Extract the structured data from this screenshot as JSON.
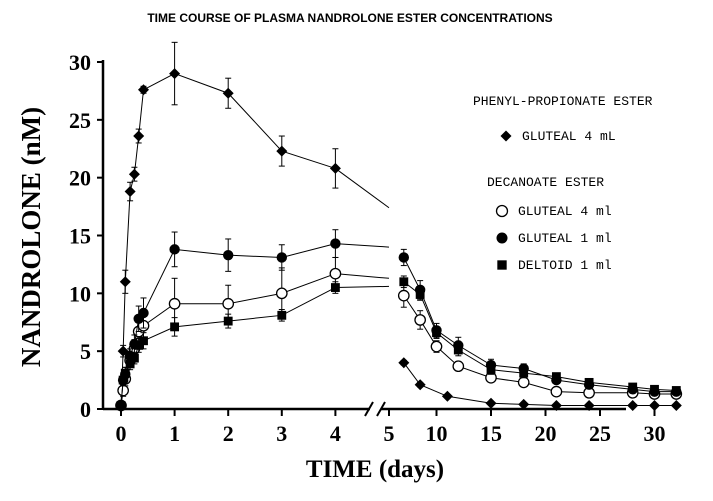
{
  "chart_data": {
    "type": "line",
    "title": "TIME COURSE OF PLASMA NANDROLONE ESTER CONCENTRATIONS",
    "xlabel": "TIME (days)",
    "ylabel": "NANDROLONE (nM)",
    "ylim": [
      0,
      30
    ],
    "y_ticks": [
      "0",
      "5",
      "10",
      "15",
      "20",
      "25",
      "30"
    ],
    "x_axis_segments": [
      {
        "unit": "days",
        "range": [
          0,
          5
        ],
        "ticks": [
          "0",
          "1",
          "2",
          "3",
          "4",
          "5"
        ]
      },
      {
        "unit": "days",
        "range": [
          5,
          32
        ],
        "ticks": [
          "10",
          "15",
          "20",
          "25",
          "30"
        ]
      }
    ],
    "legend_position": "right",
    "legend_groups": [
      {
        "heading": "PHENYL-PROPIONATE ESTER",
        "entries": [
          "GLUTEAL 4 mL"
        ]
      },
      {
        "heading": "DECANOATE ESTER",
        "entries": [
          "GLUTEAL 4 ml",
          "GLUTEAL 1 ml",
          "DELTOID 1 ml"
        ]
      }
    ],
    "series": [
      {
        "name": "GLUTEAL 4 mL",
        "ester": "PHENYL-PROPIONATE ESTER",
        "marker": "diamond",
        "color": "#000000",
        "points": [
          {
            "x": 0,
            "y": 0.3,
            "err": 0
          },
          {
            "x": 0.04,
            "y": 5.0,
            "err": 0.5
          },
          {
            "x": 0.08,
            "y": 11.0,
            "err": 1.0
          },
          {
            "x": 0.17,
            "y": 18.8,
            "err": 0.8
          },
          {
            "x": 0.25,
            "y": 20.3,
            "err": 0.6
          },
          {
            "x": 0.33,
            "y": 23.6,
            "err": 0.6
          },
          {
            "x": 0.42,
            "y": 27.6,
            "err": 0.3
          },
          {
            "x": 1,
            "y": 29.0,
            "err": 2.7
          },
          {
            "x": 2,
            "y": 27.3,
            "err": 1.3
          },
          {
            "x": 3,
            "y": 22.3,
            "err": 1.3
          },
          {
            "x": 4,
            "y": 20.8,
            "err": 1.7
          },
          {
            "x": 7,
            "y": 4.0,
            "err": 0.2
          },
          {
            "x": 8.5,
            "y": 2.1,
            "err": 0.2
          },
          {
            "x": 11,
            "y": 1.1,
            "err": 0.1
          },
          {
            "x": 15,
            "y": 0.5,
            "err": 0.1
          },
          {
            "x": 18,
            "y": 0.4,
            "err": 0.1
          },
          {
            "x": 21,
            "y": 0.3,
            "err": 0
          },
          {
            "x": 24,
            "y": 0.3,
            "err": 0
          },
          {
            "x": 28,
            "y": 0.3,
            "err": 0
          },
          {
            "x": 30,
            "y": 0.3,
            "err": 0
          },
          {
            "x": 32,
            "y": 0.3,
            "err": 0
          }
        ],
        "break_trend": [
          {
            "x": 4,
            "y": 20.8
          },
          {
            "x": 5,
            "y": 17.4
          }
        ]
      },
      {
        "name": "GLUTEAL 4 ml",
        "ester": "DECANOATE ESTER",
        "marker": "circle-open",
        "color": "#000000",
        "points": [
          {
            "x": 0,
            "y": 0.3,
            "err": 0
          },
          {
            "x": 0.04,
            "y": 1.6,
            "err": 0.5
          },
          {
            "x": 0.08,
            "y": 2.6,
            "err": 0.6
          },
          {
            "x": 0.17,
            "y": 4.2,
            "err": 0.5
          },
          {
            "x": 0.25,
            "y": 5.2,
            "err": 0.8
          },
          {
            "x": 0.33,
            "y": 6.7,
            "err": 1.0
          },
          {
            "x": 0.42,
            "y": 7.2,
            "err": 1.0
          },
          {
            "x": 1,
            "y": 9.1,
            "err": 2.2
          },
          {
            "x": 2,
            "y": 9.1,
            "err": 1.6
          },
          {
            "x": 3,
            "y": 10.0,
            "err": 2.2
          },
          {
            "x": 4,
            "y": 11.7,
            "err": 1.4
          },
          {
            "x": 7,
            "y": 9.8,
            "err": 1.0
          },
          {
            "x": 8.5,
            "y": 7.7,
            "err": 0.8
          },
          {
            "x": 10,
            "y": 5.4,
            "err": 0.5
          },
          {
            "x": 12,
            "y": 3.7,
            "err": 0.4
          },
          {
            "x": 15,
            "y": 2.7,
            "err": 0.3
          },
          {
            "x": 18,
            "y": 2.3,
            "err": 0.3
          },
          {
            "x": 21,
            "y": 1.5,
            "err": 0.2
          },
          {
            "x": 24,
            "y": 1.4,
            "err": 0.2
          },
          {
            "x": 28,
            "y": 1.4,
            "err": 0.2
          },
          {
            "x": 30,
            "y": 1.3,
            "err": 0.2
          },
          {
            "x": 32,
            "y": 1.3,
            "err": 0.2
          }
        ],
        "break_trend": [
          {
            "x": 4,
            "y": 11.7
          },
          {
            "x": 5,
            "y": 11.3
          }
        ]
      },
      {
        "name": "GLUTEAL 1 ml",
        "ester": "DECANOATE ESTER",
        "marker": "circle-filled",
        "color": "#000000",
        "points": [
          {
            "x": 0,
            "y": 0.3,
            "err": 0
          },
          {
            "x": 0.04,
            "y": 2.5,
            "err": 0.5
          },
          {
            "x": 0.08,
            "y": 3.0,
            "err": 0.6
          },
          {
            "x": 0.17,
            "y": 4.6,
            "err": 0.6
          },
          {
            "x": 0.25,
            "y": 5.6,
            "err": 0.8
          },
          {
            "x": 0.33,
            "y": 7.8,
            "err": 1.1
          },
          {
            "x": 0.42,
            "y": 8.3,
            "err": 1.3
          },
          {
            "x": 1,
            "y": 13.8,
            "err": 1.5
          },
          {
            "x": 2,
            "y": 13.3,
            "err": 1.4
          },
          {
            "x": 3,
            "y": 13.1,
            "err": 1.1
          },
          {
            "x": 4,
            "y": 14.3,
            "err": 1.2
          },
          {
            "x": 7,
            "y": 13.1,
            "err": 0.7
          },
          {
            "x": 8.5,
            "y": 10.3,
            "err": 0.8
          },
          {
            "x": 10,
            "y": 6.8,
            "err": 0.6
          },
          {
            "x": 12,
            "y": 5.5,
            "err": 0.7
          },
          {
            "x": 15,
            "y": 3.8,
            "err": 0.5
          },
          {
            "x": 18,
            "y": 3.5,
            "err": 0.4
          },
          {
            "x": 21,
            "y": 2.5,
            "err": 0.3
          },
          {
            "x": 24,
            "y": 2.1,
            "err": 0.3
          },
          {
            "x": 28,
            "y": 1.7,
            "err": 0.2
          },
          {
            "x": 30,
            "y": 1.5,
            "err": 0.2
          },
          {
            "x": 32,
            "y": 1.5,
            "err": 0.2
          }
        ],
        "break_trend": [
          {
            "x": 4,
            "y": 14.3
          },
          {
            "x": 5,
            "y": 14.0
          }
        ]
      },
      {
        "name": "DELTOID 1 ml",
        "ester": "DECANOATE ESTER",
        "marker": "square-filled",
        "color": "#000000",
        "points": [
          {
            "x": 0,
            "y": 0.3,
            "err": 0
          },
          {
            "x": 0.04,
            "y": 2.5,
            "err": 0.4
          },
          {
            "x": 0.08,
            "y": 3.1,
            "err": 0.5
          },
          {
            "x": 0.17,
            "y": 3.9,
            "err": 0.5
          },
          {
            "x": 0.25,
            "y": 4.4,
            "err": 0.5
          },
          {
            "x": 0.33,
            "y": 5.5,
            "err": 0.6
          },
          {
            "x": 0.42,
            "y": 5.9,
            "err": 0.7
          },
          {
            "x": 1,
            "y": 7.1,
            "err": 0.8
          },
          {
            "x": 2,
            "y": 7.6,
            "err": 0.6
          },
          {
            "x": 3,
            "y": 8.1,
            "err": 0.5
          },
          {
            "x": 4,
            "y": 10.5,
            "err": 0.5
          },
          {
            "x": 7,
            "y": 11.0,
            "err": 0.5
          },
          {
            "x": 8.5,
            "y": 9.9,
            "err": 0.5
          },
          {
            "x": 10,
            "y": 6.6,
            "err": 0.5
          },
          {
            "x": 12,
            "y": 5.1,
            "err": 0.5
          },
          {
            "x": 15,
            "y": 3.4,
            "err": 0.4
          },
          {
            "x": 18,
            "y": 3.1,
            "err": 0.4
          },
          {
            "x": 21,
            "y": 2.8,
            "err": 0.3
          },
          {
            "x": 24,
            "y": 2.3,
            "err": 0.3
          },
          {
            "x": 28,
            "y": 1.9,
            "err": 0.2
          },
          {
            "x": 30,
            "y": 1.7,
            "err": 0.2
          },
          {
            "x": 32,
            "y": 1.6,
            "err": 0.2
          }
        ],
        "break_trend": [
          {
            "x": 4,
            "y": 10.5
          },
          {
            "x": 5,
            "y": 10.6
          }
        ]
      }
    ]
  }
}
